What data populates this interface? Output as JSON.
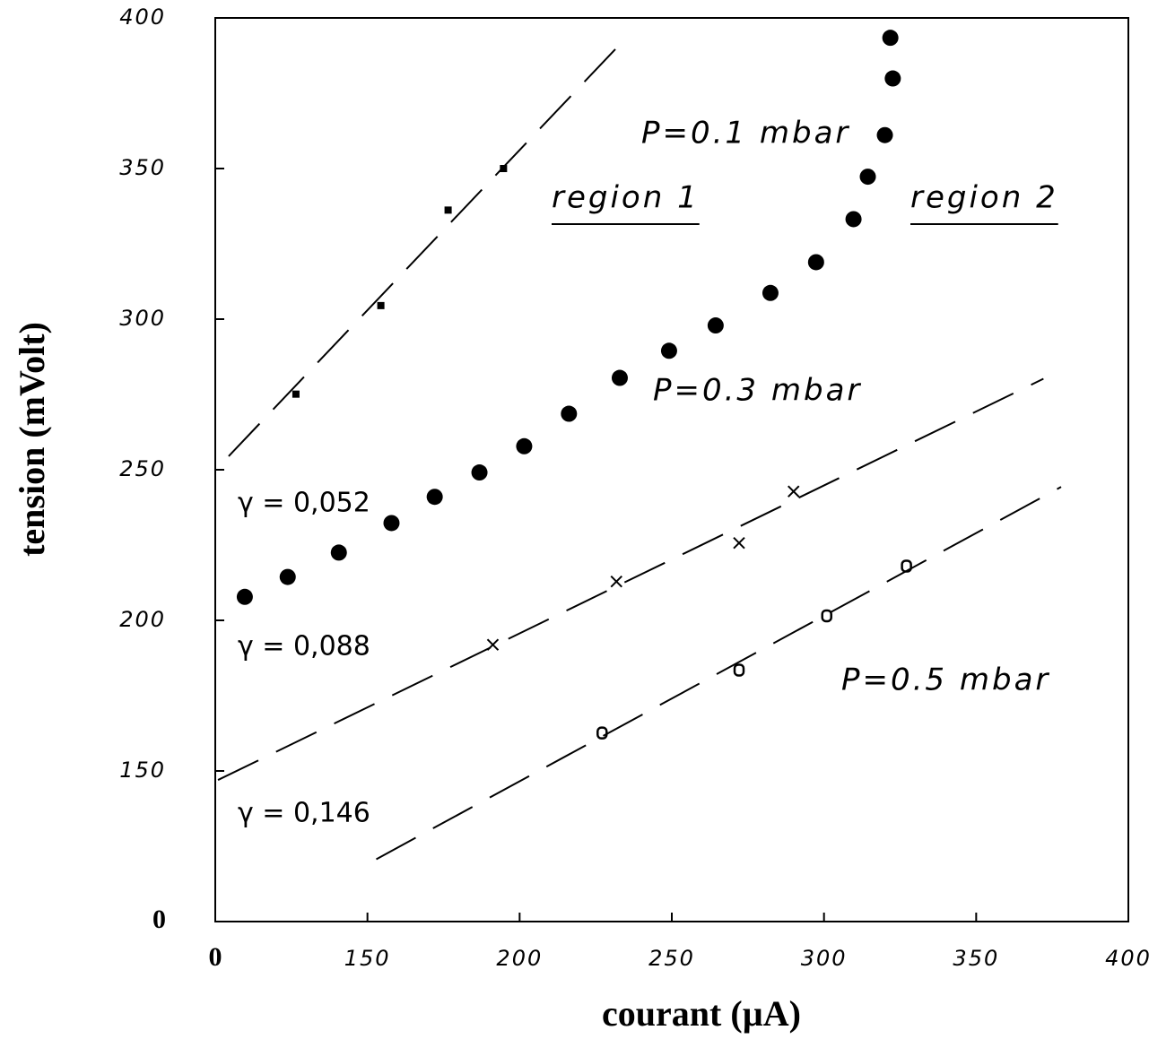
{
  "chart_data": {
    "type": "scatter",
    "xlabel": "courant (µA)",
    "ylabel": "tension (mVolt)",
    "xlim": [
      0,
      400
    ],
    "ylim": [
      0,
      400
    ],
    "xticks": [
      0,
      150,
      200,
      250,
      300,
      350,
      400
    ],
    "yticks": [
      0,
      150,
      200,
      250,
      300,
      350,
      400
    ],
    "series": [
      {
        "marker": "dot",
        "color": "#000",
        "x": [
          109.7,
          123.8,
          140.6,
          157.9,
          172.1,
          186.8,
          201.5,
          216.2,
          232.9,
          249.1,
          264.4,
          282.4,
          297.4,
          309.7,
          314.4,
          320.0,
          322.6,
          321.8
        ],
        "values": [
          207.8,
          214.4,
          222.5,
          232.3,
          241.0,
          249.1,
          257.8,
          268.6,
          280.5,
          289.5,
          297.9,
          308.7,
          318.9,
          333.2,
          347.3,
          361.1,
          379.9,
          393.4
        ]
      },
      {
        "marker": "square",
        "color": "#000",
        "x": [
          126.5,
          154.4,
          176.5,
          194.7
        ],
        "values": [
          275.1,
          304.5,
          336.2,
          350.0
        ]
      },
      {
        "marker": "cross",
        "color": "#000",
        "x": [
          191.2,
          231.8,
          272.1,
          290.0
        ],
        "values": [
          191.9,
          212.9,
          225.7,
          242.8
        ]
      },
      {
        "marker": "ring",
        "color": "#000",
        "x": [
          227.1,
          272.1,
          300.9,
          327.1
        ],
        "values": [
          162.6,
          183.5,
          201.5,
          218.0
        ]
      }
    ],
    "fit_lines": [
      {
        "x": [
          104.4,
          235.3
        ],
        "values": [
          254.5,
          393.7
        ]
      },
      {
        "x": [
          100.9,
          372.1
        ],
        "values": [
          147.0,
          280.2
        ]
      },
      {
        "x": [
          152.9,
          377.9
        ],
        "values": [
          120.7,
          244.3
        ]
      }
    ],
    "annotations": [
      "P=0.1 mbar",
      "P=0.3 mbar",
      "P=0.5 mbar",
      "region 1",
      "region 2",
      "γ = 0,052",
      "γ = 0,088",
      "γ = 0,146"
    ]
  }
}
